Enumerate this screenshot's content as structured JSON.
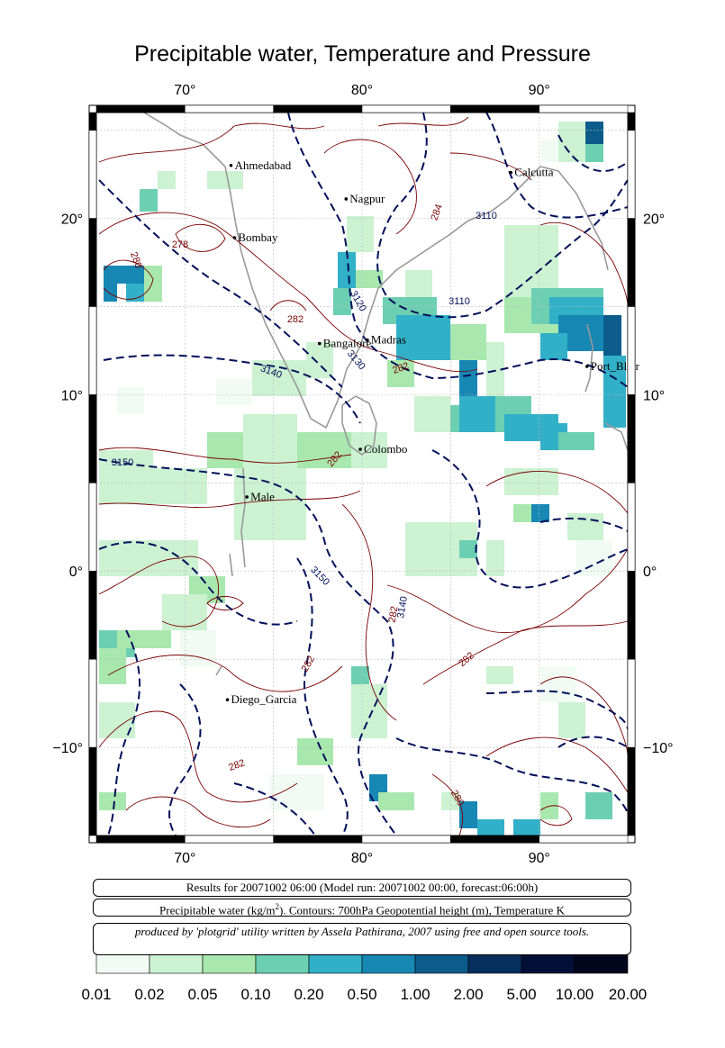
{
  "title": "Precipitable water, Temperature and Pressure",
  "axes": {
    "x_ticks": [
      "70°",
      "80°",
      "90°"
    ],
    "y_ticks": [
      "20°",
      "10°",
      "0°",
      "−10°"
    ]
  },
  "cities": [
    {
      "name": "Ahmedabad",
      "lon": 72.6,
      "lat": 23.0
    },
    {
      "name": "Nagpur",
      "lon": 79.1,
      "lat": 21.1
    },
    {
      "name": "Calcutta",
      "lon": 88.4,
      "lat": 22.6
    },
    {
      "name": "Bombay",
      "lon": 72.8,
      "lat": 18.9
    },
    {
      "name": "Bangalore",
      "lon": 77.6,
      "lat": 12.9
    },
    {
      "name": "Madras",
      "lon": 80.3,
      "lat": 13.1
    },
    {
      "name": "Port_Blair",
      "lon": 92.7,
      "lat": 11.6
    },
    {
      "name": "Colombo",
      "lon": 79.9,
      "lat": 6.9
    },
    {
      "name": "Male",
      "lon": 73.5,
      "lat": 4.2
    },
    {
      "name": "Diego_Garcia",
      "lon": 72.4,
      "lat": -7.3
    }
  ],
  "contour_labels": [
    {
      "text": "278",
      "kind": "temperature"
    },
    {
      "text": "280",
      "kind": "temperature"
    },
    {
      "text": "282",
      "kind": "temperature"
    },
    {
      "text": "282",
      "kind": "temperature"
    },
    {
      "text": "282",
      "kind": "temperature"
    },
    {
      "text": "282",
      "kind": "temperature"
    },
    {
      "text": "282",
      "kind": "temperature"
    },
    {
      "text": "282",
      "kind": "temperature"
    },
    {
      "text": "282",
      "kind": "temperature"
    },
    {
      "text": "284",
      "kind": "temperature"
    },
    {
      "text": "280",
      "kind": "temperature"
    },
    {
      "text": "3110",
      "kind": "geopotential"
    },
    {
      "text": "3110",
      "kind": "geopotential"
    },
    {
      "text": "3120",
      "kind": "geopotential"
    },
    {
      "text": "3130",
      "kind": "geopotential"
    },
    {
      "text": "3140",
      "kind": "geopotential"
    },
    {
      "text": "3150",
      "kind": "geopotential"
    },
    {
      "text": "3150",
      "kind": "geopotential"
    },
    {
      "text": "3140",
      "kind": "geopotential"
    }
  ],
  "info": {
    "results": "Results for 20071002 06:00 (Model run: 20071002 00:00, forecast:06:00h)",
    "legend_pw": "Precipitable water (kg/m",
    "legend_sup": "2",
    "legend_rest": ").  Contours: 700hPa Geopotential height (m), Temperature K",
    "credit": "produced by 'plotgrid' utility written by Assela Pathirana, 2007 using free and open source tools."
  },
  "colorbar": {
    "labels": [
      "0.01",
      "0.02",
      "0.05",
      "0.10",
      "0.20",
      "0.50",
      "1.00",
      "2.00",
      "5.00",
      "10.00",
      "20.00"
    ],
    "colors": [
      "#f1fbf4",
      "#ccf2d2",
      "#a8e8ae",
      "#6dcfb2",
      "#31b0c8",
      "#1787b4",
      "#0b5c8a",
      "#062f5e",
      "#030f36",
      "#01061c"
    ]
  },
  "map_extent": {
    "lon_min": 65,
    "lon_max": 95,
    "lat_min": -15,
    "lat_max": 26
  },
  "colors": {
    "temperature": "#7a0000",
    "geopotential": "#00105a",
    "coast": "#999999",
    "grid": "#bbbbbb"
  }
}
